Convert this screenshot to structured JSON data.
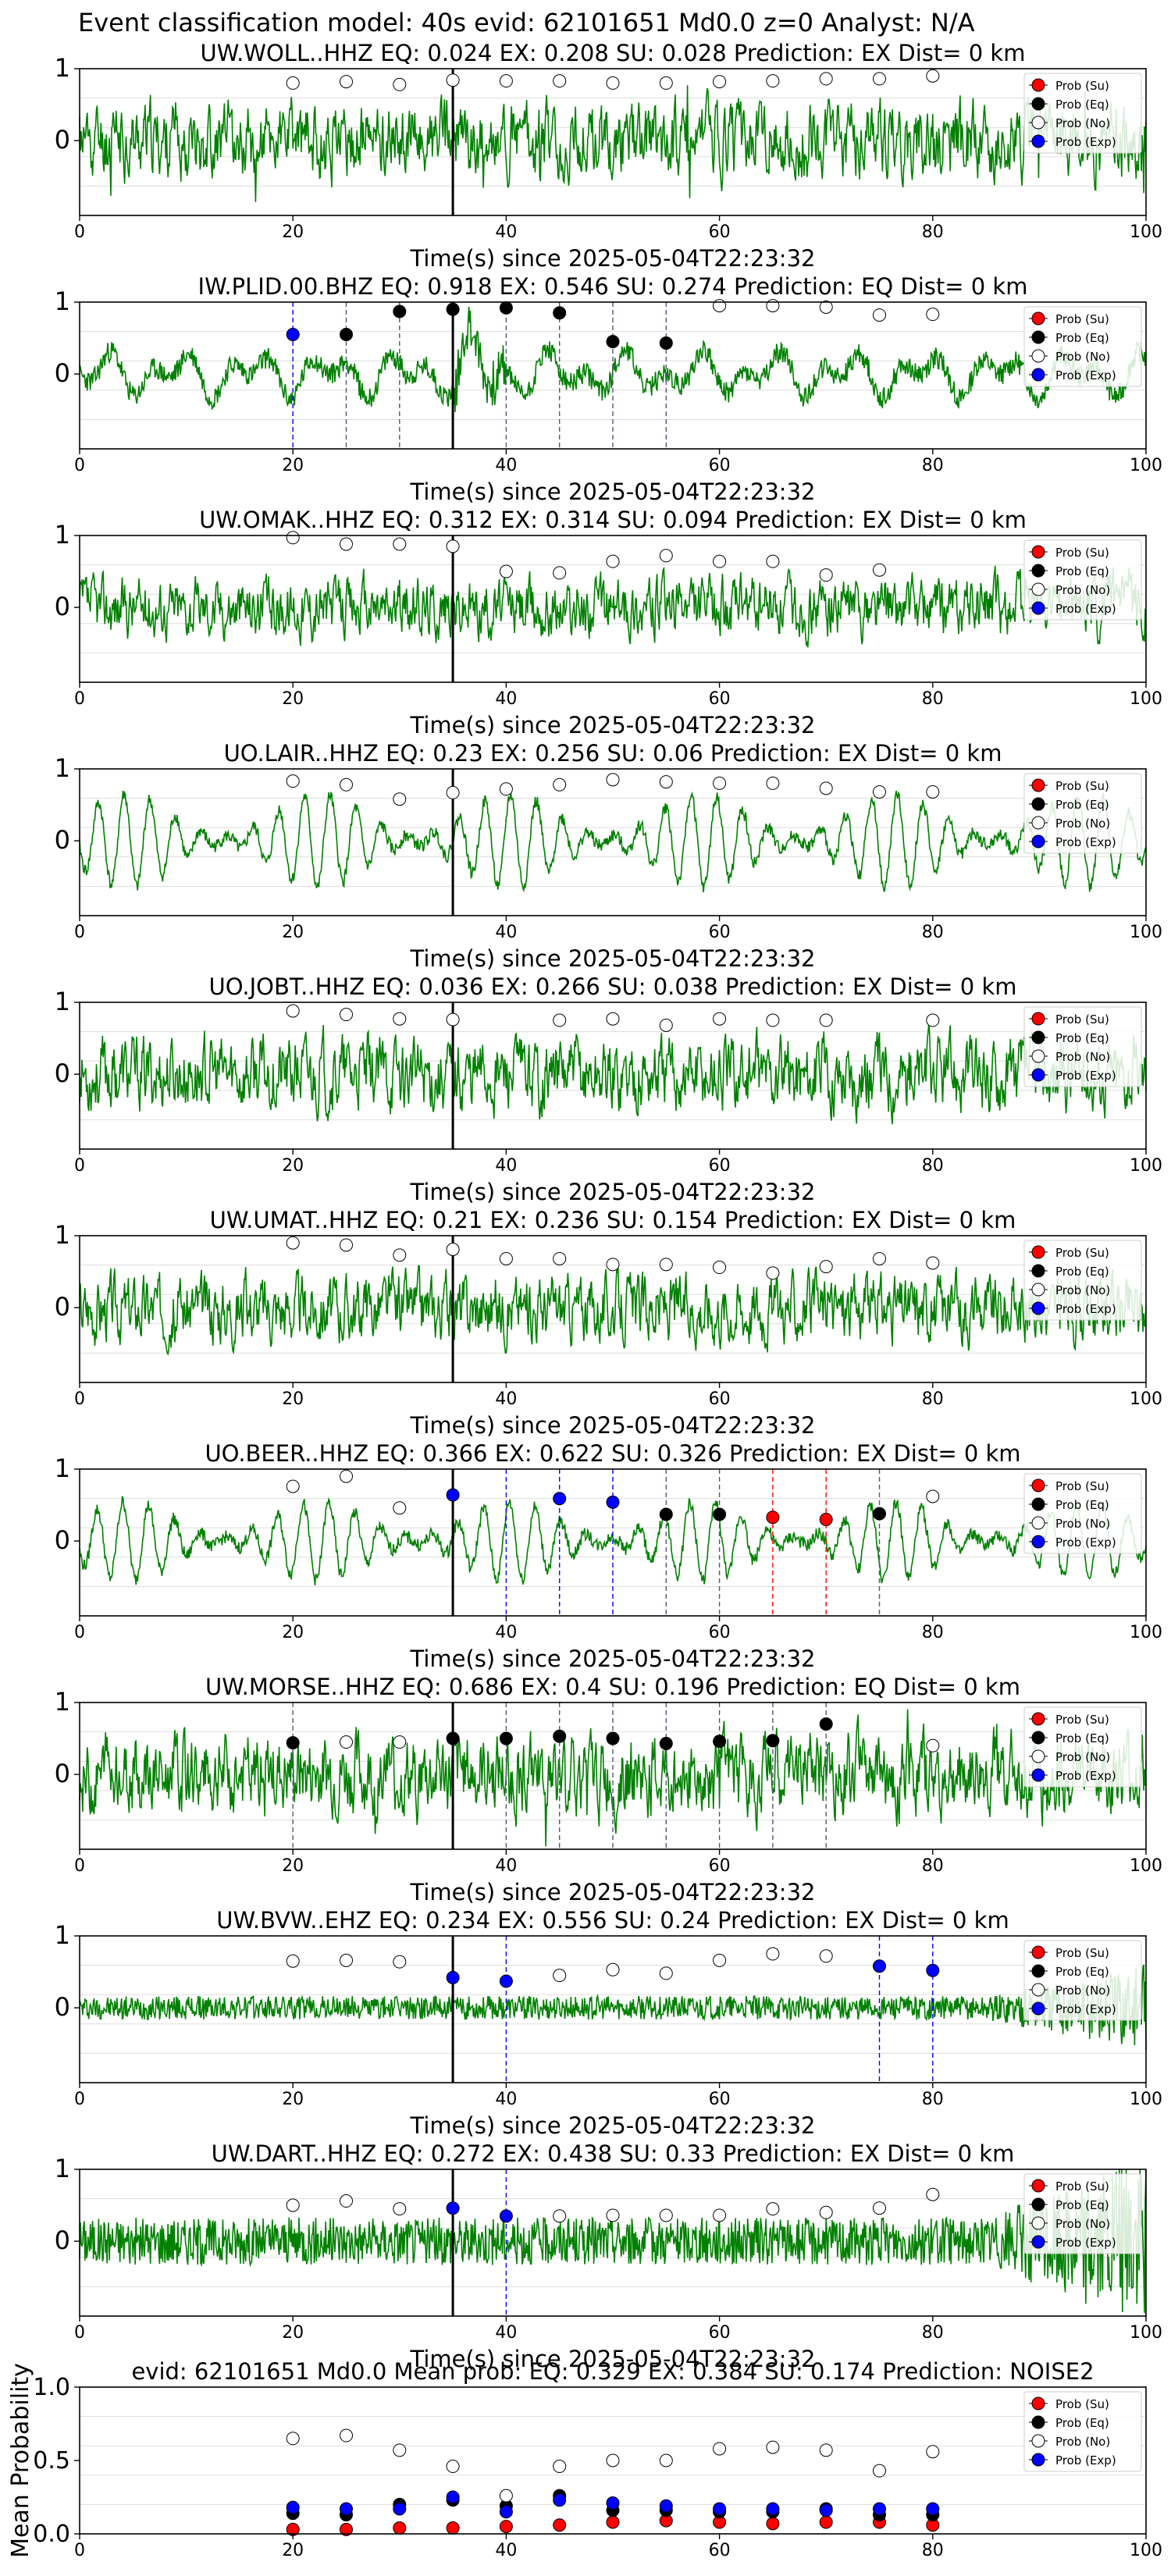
{
  "suptitle": "Event classification model: 40s evid: 62101651 Md0.0 z=0 Analyst: N/A",
  "colors": {
    "waveform": "#008000",
    "su": "#ff0000",
    "eq": "#000000",
    "no": "#ffffff",
    "exp": "#0000ff",
    "pick": "#000000"
  },
  "legend": [
    "Prob (Su)",
    "Prob (Eq)",
    "Prob (No)",
    "Prob (Exp)"
  ],
  "x_ticks": [
    0,
    20,
    40,
    60,
    80,
    100
  ],
  "xlabel": "Time(s) since 2025-05-04T22:23:32",
  "window_starts": [
    20,
    25,
    30,
    35,
    40,
    45,
    50,
    55,
    60,
    65,
    70,
    75,
    80
  ],
  "chart_data": [
    {
      "type": "line",
      "title": "UW.WOLL..HHZ    EQ: 0.024  EX: 0.208  SU: 0.028   Prediction: EX    Dist= 0 km",
      "xlabel": "Time(s) since 2025-05-04T22:23:32",
      "xlim": [
        0,
        100
      ],
      "yticks": [
        "1",
        "0"
      ],
      "pick_time": 35,
      "noise": 0.5,
      "style": "spiky",
      "seed": 11,
      "probs": {
        "Su": [
          0,
          0,
          0,
          0,
          0,
          0,
          0,
          0,
          0,
          0,
          0,
          0,
          0
        ],
        "Eq": [
          0,
          0,
          0,
          0,
          0,
          0,
          0,
          0,
          0,
          0,
          0,
          0,
          0
        ],
        "No": [
          0.8,
          0.82,
          0.78,
          0.84,
          0.83,
          0.83,
          0.8,
          0.8,
          0.82,
          0.83,
          0.86,
          0.86,
          0.9
        ],
        "Exp": [
          0,
          0,
          0,
          0,
          0,
          0,
          0,
          0,
          0,
          0,
          0,
          0,
          0
        ]
      },
      "predicted": [
        "No",
        "No",
        "No",
        "No",
        "No",
        "No",
        "No",
        "No",
        "No",
        "No",
        "No",
        "No",
        "No"
      ]
    },
    {
      "type": "line",
      "title": "IW.PLID.00.BHZ    EQ: 0.918  EX: 0.546  SU: 0.274   Prediction: EQ    Dist= 0 km",
      "xlabel": "Time(s) since 2025-05-04T22:23:32",
      "xlim": [
        0,
        100
      ],
      "yticks": [
        "1",
        "0"
      ],
      "pick_time": 35,
      "noise": 0.45,
      "style": "lowfreq",
      "seed": 23,
      "probs": {
        "Su": [
          0,
          0,
          0,
          0,
          0,
          0,
          0,
          0,
          0,
          0,
          0,
          0,
          0
        ],
        "Eq": [
          0,
          0.55,
          0.87,
          0.9,
          0.92,
          0.85,
          0.45,
          0.43,
          0,
          0,
          0,
          0,
          0
        ],
        "No": [
          0,
          0,
          0,
          0,
          0,
          0,
          0,
          0,
          0.95,
          0.95,
          0.93,
          0.82,
          0.83
        ],
        "Exp": [
          0.55,
          0,
          0,
          0,
          0,
          0,
          0,
          0,
          0,
          0,
          0,
          0,
          0
        ]
      },
      "predicted": [
        "Exp",
        "Eq",
        "Eq",
        "Eq",
        "Eq",
        "Eq",
        "Eq",
        "Eq",
        "No",
        "No",
        "No",
        "No",
        "No"
      ]
    },
    {
      "type": "line",
      "title": "UW.OMAK..HHZ    EQ: 0.312  EX: 0.314  SU: 0.094   Prediction: EX    Dist= 0 km",
      "xlabel": "Time(s) since 2025-05-04T22:23:32",
      "xlim": [
        0,
        100
      ],
      "yticks": [
        "1",
        "0"
      ],
      "pick_time": 35,
      "noise": 0.4,
      "style": "mixed",
      "seed": 37,
      "probs": {
        "Su": [
          0,
          0,
          0,
          0,
          0,
          0,
          0,
          0,
          0,
          0,
          0,
          0,
          0
        ],
        "Eq": [
          0,
          0,
          0,
          0,
          0,
          0,
          0,
          0,
          0,
          0,
          0,
          0,
          0
        ],
        "No": [
          0.97,
          0.88,
          0.88,
          0.85,
          0.5,
          0.48,
          0.64,
          0.72,
          0.64,
          0.64,
          0.45,
          0.52,
          0
        ],
        "Exp": [
          0,
          0,
          0,
          0,
          0,
          0,
          0,
          0,
          0,
          0,
          0,
          0,
          0
        ]
      },
      "predicted": [
        "No",
        "No",
        "No",
        "No",
        "No",
        "No",
        "No",
        "No",
        "No",
        "No",
        "No",
        "No",
        "No"
      ]
    },
    {
      "type": "line",
      "title": "UO.LAIR..HHZ    EQ: 0.23  EX: 0.256  SU: 0.06   Prediction: EX    Dist= 0 km",
      "xlabel": "Time(s) since 2025-05-04T22:23:32",
      "xlim": [
        0,
        100
      ],
      "yticks": [
        "1",
        "0"
      ],
      "pick_time": 35,
      "noise": 0.65,
      "style": "sine",
      "seed": 41,
      "probs": {
        "Su": [
          0,
          0,
          0,
          0,
          0,
          0,
          0,
          0,
          0,
          0,
          0,
          0,
          0
        ],
        "Eq": [
          0,
          0,
          0,
          0,
          0,
          0,
          0,
          0,
          0,
          0,
          0,
          0,
          0
        ],
        "No": [
          0.83,
          0.78,
          0.58,
          0.67,
          0.72,
          0.78,
          0.85,
          0.82,
          0.8,
          0.8,
          0.73,
          0.68,
          0.68
        ],
        "Exp": [
          0,
          0,
          0,
          0,
          0,
          0,
          0,
          0,
          0,
          0,
          0,
          0,
          0
        ]
      },
      "predicted": [
        "No",
        "No",
        "No",
        "No",
        "No",
        "No",
        "No",
        "No",
        "No",
        "No",
        "No",
        "No",
        "No"
      ]
    },
    {
      "type": "line",
      "title": "UO.JOBT..HHZ    EQ: 0.036  EX: 0.266  SU: 0.038   Prediction: EX    Dist= 0 km",
      "xlabel": "Time(s) since 2025-05-04T22:23:32",
      "xlim": [
        0,
        100
      ],
      "yticks": [
        "1",
        "0"
      ],
      "pick_time": 35,
      "noise": 0.5,
      "style": "mixed",
      "seed": 53,
      "probs": {
        "Su": [
          0,
          0,
          0,
          0,
          0,
          0,
          0,
          0,
          0,
          0,
          0,
          0,
          0
        ],
        "Eq": [
          0,
          0,
          0,
          0,
          0,
          0,
          0,
          0,
          0,
          0,
          0,
          0,
          0
        ],
        "No": [
          0.88,
          0.83,
          0.77,
          0.76,
          0,
          0.75,
          0.77,
          0.68,
          0.77,
          0.75,
          0.75,
          0,
          0.75
        ],
        "Exp": [
          0,
          0,
          0,
          0,
          0,
          0,
          0,
          0,
          0,
          0,
          0,
          0,
          0
        ]
      },
      "predicted": [
        "No",
        "No",
        "No",
        "No",
        "No",
        "No",
        "No",
        "No",
        "No",
        "No",
        "No",
        "No",
        "No"
      ]
    },
    {
      "type": "line",
      "title": "UW.UMAT..HHZ    EQ: 0.21  EX: 0.236  SU: 0.154   Prediction: EX    Dist= 0 km",
      "xlabel": "Time(s) since 2025-05-04T22:23:32",
      "xlim": [
        0,
        100
      ],
      "yticks": [
        "1",
        "0"
      ],
      "pick_time": 35,
      "noise": 0.45,
      "style": "mixed",
      "seed": 67,
      "probs": {
        "Su": [
          0,
          0,
          0,
          0,
          0,
          0,
          0,
          0,
          0,
          0,
          0,
          0,
          0
        ],
        "Eq": [
          0,
          0,
          0,
          0,
          0,
          0,
          0,
          0,
          0,
          0,
          0,
          0,
          0
        ],
        "No": [
          0.9,
          0.87,
          0.73,
          0.81,
          0.68,
          0.68,
          0.6,
          0.6,
          0.56,
          0.48,
          0.57,
          0.68,
          0.62
        ],
        "Exp": [
          0,
          0,
          0,
          0,
          0,
          0,
          0,
          0,
          0,
          0,
          0,
          0,
          0
        ]
      },
      "predicted": [
        "No",
        "No",
        "No",
        "No",
        "No",
        "No",
        "No",
        "No",
        "No",
        "No",
        "No",
        "No",
        "No"
      ]
    },
    {
      "type": "line",
      "title": "UO.BEER..HHZ    EQ: 0.366  EX: 0.622  SU: 0.326   Prediction: EX    Dist= 0 km",
      "xlabel": "Time(s) since 2025-05-04T22:23:32",
      "xlim": [
        0,
        100
      ],
      "yticks": [
        "1",
        "0"
      ],
      "pick_time": 35,
      "noise": 0.55,
      "style": "sine",
      "seed": 79,
      "probs": {
        "Su": [
          0,
          0,
          0,
          0,
          0,
          0,
          0,
          0,
          0,
          0.33,
          0.3,
          0,
          0
        ],
        "Eq": [
          0,
          0,
          0,
          0,
          0,
          0,
          0,
          0.37,
          0.37,
          0,
          0,
          0.38,
          0
        ],
        "No": [
          0.76,
          0.9,
          0.46,
          0,
          0,
          0,
          0,
          0,
          0,
          0,
          0,
          0,
          0.62
        ],
        "Exp": [
          0,
          0,
          0,
          0.64,
          0,
          0.59,
          0.54,
          0,
          0,
          0,
          0,
          0,
          0
        ]
      },
      "predicted": [
        "No",
        "No",
        "No",
        "Exp",
        "Exp",
        "Exp",
        "Exp",
        "Eq",
        "Eq",
        "Su",
        "Su",
        "Eq",
        "No"
      ]
    },
    {
      "type": "line",
      "title": "UW.MORSE..HHZ    EQ: 0.686  EX: 0.4  SU: 0.196   Prediction: EQ    Dist= 0 km",
      "xlabel": "Time(s) since 2025-05-04T22:23:32",
      "xlim": [
        0,
        100
      ],
      "yticks": [
        "1",
        "0"
      ],
      "pick_time": 35,
      "noise": 0.55,
      "style": "spiky",
      "seed": 83,
      "probs": {
        "Su": [
          0,
          0,
          0,
          0,
          0,
          0,
          0,
          0,
          0,
          0,
          0,
          0,
          0
        ],
        "Eq": [
          0.44,
          0,
          0,
          0.5,
          0.5,
          0.53,
          0.5,
          0.43,
          0.46,
          0.47,
          0.7,
          0,
          0
        ],
        "No": [
          0,
          0.45,
          0.45,
          0,
          0,
          0,
          0,
          0,
          0,
          0,
          0,
          0,
          0.4
        ],
        "Exp": [
          0,
          0,
          0,
          0,
          0,
          0,
          0,
          0,
          0,
          0,
          0,
          0,
          0
        ]
      },
      "predicted": [
        "Eq",
        "No",
        "No",
        "Eq",
        "Eq",
        "Eq",
        "Eq",
        "Eq",
        "Eq",
        "Eq",
        "Eq",
        "No",
        "No"
      ]
    },
    {
      "type": "line",
      "title": "UW.BVW..EHZ    EQ: 0.234  EX: 0.556  SU: 0.24   Prediction: EX    Dist= 0 km",
      "xlabel": "Time(s) since 2025-05-04T22:23:32",
      "xlim": [
        0,
        100
      ],
      "yticks": [
        "1",
        "0"
      ],
      "pick_time": 35,
      "noise": 0.15,
      "style": "noise",
      "seed": 97,
      "probs": {
        "Su": [
          0,
          0,
          0,
          0,
          0,
          0,
          0,
          0,
          0,
          0,
          0,
          0,
          0
        ],
        "Eq": [
          0,
          0,
          0,
          0,
          0,
          0,
          0,
          0,
          0,
          0,
          0,
          0,
          0
        ],
        "No": [
          0.65,
          0.66,
          0.64,
          0,
          0,
          0.45,
          0.53,
          0.48,
          0.66,
          0.75,
          0.72,
          0,
          0
        ],
        "Exp": [
          0,
          0,
          0,
          0.42,
          0.37,
          0,
          0,
          0,
          0,
          0,
          0,
          0.58,
          0.52
        ]
      },
      "predicted": [
        "No",
        "No",
        "No",
        "Exp",
        "Exp",
        "No",
        "No",
        "No",
        "No",
        "No",
        "No",
        "Exp",
        "Exp"
      ]
    },
    {
      "type": "line",
      "title": "UW.DART..HHZ    EQ: 0.272  EX: 0.438  SU: 0.33   Prediction: EX    Dist= 0 km",
      "xlabel": "Time(s) since 2025-05-04T22:23:32",
      "xlim": [
        0,
        100
      ],
      "yticks": [
        "1",
        "0"
      ],
      "pick_time": 35,
      "noise": 0.3,
      "style": "noise",
      "seed": 101,
      "probs": {
        "Su": [
          0,
          0,
          0,
          0,
          0,
          0,
          0,
          0,
          0,
          0,
          0,
          0,
          0
        ],
        "Eq": [
          0,
          0,
          0,
          0,
          0,
          0,
          0,
          0,
          0,
          0,
          0,
          0,
          0
        ],
        "No": [
          0.5,
          0.56,
          0.45,
          0,
          0,
          0.35,
          0.36,
          0.36,
          0.36,
          0.45,
          0.4,
          0.46,
          0.65
        ],
        "Exp": [
          0,
          0,
          0,
          0.46,
          0.35,
          0,
          0,
          0,
          0,
          0,
          0,
          0,
          0
        ]
      },
      "predicted": [
        "No",
        "No",
        "No",
        "Exp",
        "Exp",
        "No",
        "No",
        "No",
        "No",
        "No",
        "No",
        "No",
        "No"
      ]
    },
    {
      "type": "scatter",
      "title": "evid: 62101651  Md0.0   Mean prob:   EQ: 0.329  EX: 0.384  SU: 0.174   Prediction: NOISE2",
      "ylabel": "Mean Probability",
      "xlim": [
        0,
        100
      ],
      "ylim": [
        0,
        1
      ],
      "yticks": [
        "0.0",
        "0.5",
        "1.0"
      ],
      "probs": {
        "Su": [
          0.03,
          0.03,
          0.04,
          0.04,
          0.05,
          0.06,
          0.08,
          0.09,
          0.08,
          0.07,
          0.08,
          0.08,
          0.06
        ],
        "Eq": [
          0.14,
          0.13,
          0.2,
          0.23,
          0.19,
          0.26,
          0.16,
          0.16,
          0.15,
          0.15,
          0.17,
          0.13,
          0.13
        ],
        "No": [
          0.65,
          0.67,
          0.57,
          0.46,
          0.26,
          0.46,
          0.5,
          0.5,
          0.58,
          0.59,
          0.57,
          0.43,
          0.56
        ],
        "Exp": [
          0.18,
          0.17,
          0.17,
          0.25,
          0.15,
          0.23,
          0.21,
          0.19,
          0.17,
          0.17,
          0.16,
          0.17,
          0.17
        ]
      }
    }
  ]
}
